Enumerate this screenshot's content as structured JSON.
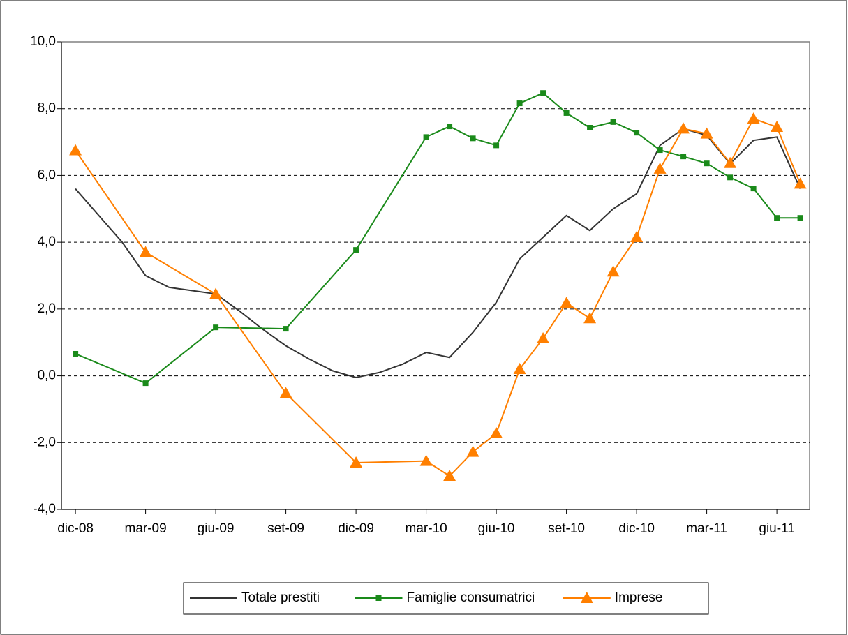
{
  "chart_data": {
    "type": "line",
    "xlim": [
      -0.6,
      31.4
    ],
    "xticks": [
      {
        "value": 0,
        "label": "dic-08"
      },
      {
        "value": 3,
        "label": "mar-09"
      },
      {
        "value": 6,
        "label": "giu-09"
      },
      {
        "value": 9,
        "label": "set-09"
      },
      {
        "value": 12,
        "label": "dic-09"
      },
      {
        "value": 15,
        "label": "mar-10"
      },
      {
        "value": 18,
        "label": "giu-10"
      },
      {
        "value": 21,
        "label": "set-10"
      },
      {
        "value": 24,
        "label": "dic-10"
      },
      {
        "value": 27,
        "label": "mar-11"
      },
      {
        "value": 30,
        "label": "giu-11"
      }
    ],
    "ylim": [
      -4,
      10
    ],
    "yticks": [
      {
        "value": -4,
        "label": "-4,0"
      },
      {
        "value": -2,
        "label": "-2,0"
      },
      {
        "value": 0,
        "label": "0,0"
      },
      {
        "value": 2,
        "label": "2,0"
      },
      {
        "value": 4,
        "label": "4,0"
      },
      {
        "value": 6,
        "label": "6,0"
      },
      {
        "value": 8,
        "label": "8,0"
      },
      {
        "value": 10,
        "label": "10,0"
      }
    ],
    "grid": true,
    "legend": "bottom",
    "series": [
      {
        "name": "Totale prestiti",
        "color": "#333333",
        "marker": "none",
        "x": [
          0,
          1,
          2,
          3,
          4,
          5,
          6,
          7,
          8,
          9,
          10,
          11,
          12,
          13,
          14,
          15,
          16,
          17,
          18,
          19,
          20,
          21,
          22,
          23,
          24,
          25,
          26,
          27,
          28,
          29,
          30,
          31
        ],
        "values": [
          5.6,
          4.8,
          4.0,
          3.0,
          2.65,
          2.55,
          2.45,
          1.95,
          1.4,
          0.9,
          0.5,
          0.15,
          -0.05,
          0.1,
          0.35,
          0.7,
          0.55,
          1.3,
          2.2,
          3.5,
          4.15,
          4.8,
          4.35,
          5.0,
          5.45,
          6.9,
          7.4,
          7.2,
          6.35,
          7.05,
          7.15,
          5.6
        ]
      },
      {
        "name": "Famiglie consumatrici",
        "color": "#1a8a1a",
        "marker": "square",
        "x": [
          0,
          3,
          6,
          9,
          12,
          15,
          16,
          17,
          18,
          19,
          20,
          21,
          22,
          23,
          24,
          25,
          26,
          27,
          28,
          29,
          30,
          31
        ],
        "values": [
          0.66,
          -0.22,
          1.45,
          1.41,
          3.77,
          7.15,
          7.47,
          7.11,
          6.9,
          8.16,
          8.47,
          7.87,
          7.43,
          7.6,
          7.28,
          6.76,
          6.57,
          6.36,
          5.94,
          5.61,
          4.73,
          4.73
        ]
      },
      {
        "name": "Imprese",
        "color": "#ff7f00",
        "marker": "triangle",
        "x": [
          0,
          3,
          6,
          9,
          12,
          15,
          16,
          17,
          18,
          19,
          20,
          21,
          22,
          23,
          24,
          25,
          26,
          27,
          28,
          29,
          30,
          31
        ],
        "values": [
          6.75,
          3.7,
          2.45,
          -0.52,
          -2.6,
          -2.55,
          -3.0,
          -2.28,
          -1.72,
          0.2,
          1.12,
          2.18,
          1.72,
          3.12,
          4.15,
          6.2,
          7.4,
          7.25,
          6.37,
          7.7,
          7.45,
          5.75
        ]
      }
    ]
  }
}
